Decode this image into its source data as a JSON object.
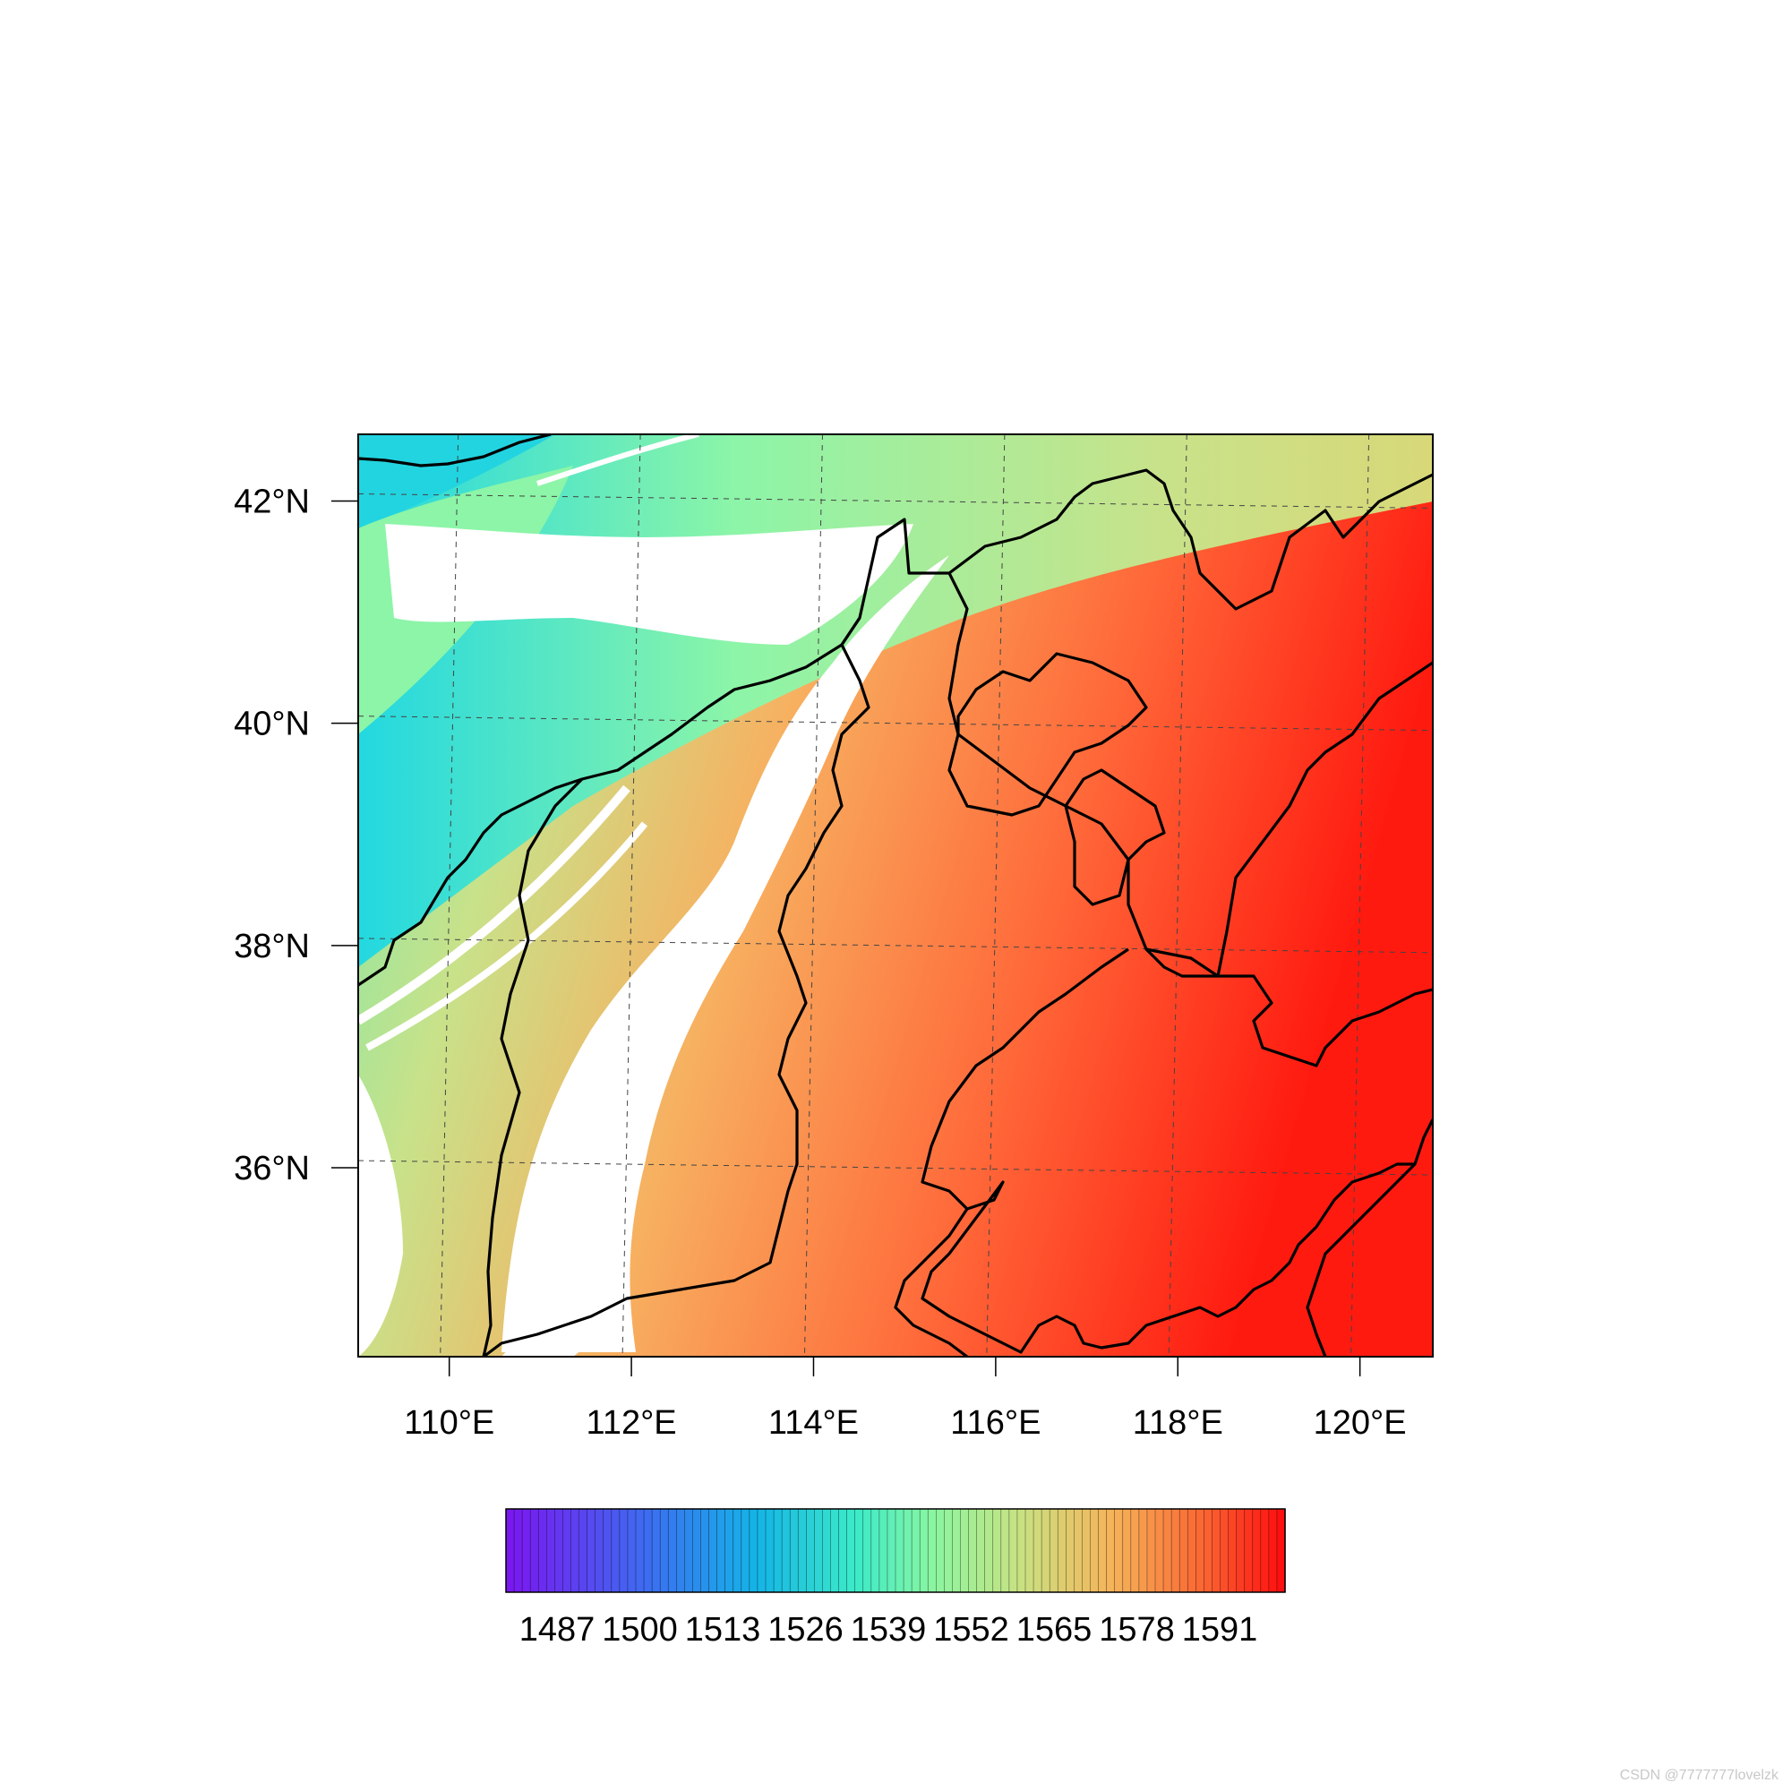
{
  "map": {
    "lon_ticks": [
      "110°E",
      "112°E",
      "114°E",
      "116°E",
      "118°E",
      "120°E"
    ],
    "lat_ticks": [
      "42°N",
      "40°N",
      "38°N",
      "36°N"
    ],
    "lon_range": [
      109.0,
      120.8
    ],
    "lat_range": [
      34.3,
      42.6
    ],
    "gridlines": "dashed",
    "fill_colors": {
      "low": "#20d4e0",
      "mid_low": "#8cf5a8",
      "mid": "#c8e28a",
      "mid_high": "#f7b060",
      "high": "#ff6a3a",
      "max": "#ff1a10",
      "missing": "#ffffff"
    }
  },
  "colorbar": {
    "labels": [
      "1487",
      "1500",
      "1513",
      "1526",
      "1539",
      "1552",
      "1565",
      "1578",
      "1591"
    ],
    "segments": 96,
    "colormap": "rainbow",
    "min_color": "#7a18f0",
    "max_color": "#ff1010"
  },
  "watermark": "CSDN @7777777lovelzk"
}
